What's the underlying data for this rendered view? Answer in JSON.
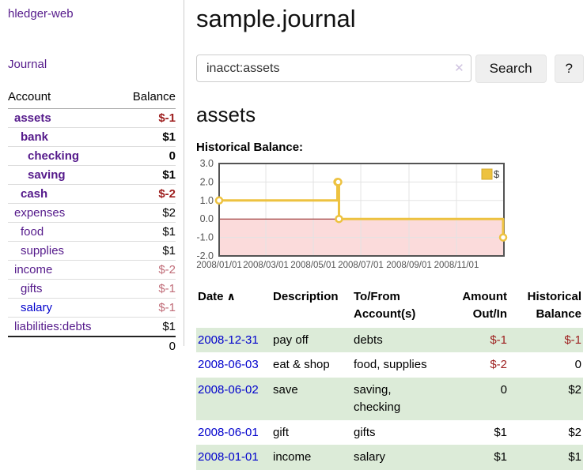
{
  "app": {
    "brand": "hledger-web"
  },
  "sidebar": {
    "journal_label": "Journal",
    "accounts_table": {
      "headers": [
        "Account",
        "Balance"
      ],
      "rows": [
        {
          "account": "assets",
          "balance": "$-1",
          "indent": 0,
          "bold": true,
          "balance_style": "neg-strong"
        },
        {
          "account": "bank",
          "balance": "$1",
          "indent": 1,
          "bold": true,
          "balance_style": "pos"
        },
        {
          "account": "checking",
          "balance": "0",
          "indent": 2,
          "bold": true,
          "balance_style": "pos"
        },
        {
          "account": "saving",
          "balance": "$1",
          "indent": 2,
          "bold": true,
          "balance_style": "pos"
        },
        {
          "account": "cash",
          "balance": "$-2",
          "indent": 1,
          "bold": true,
          "balance_style": "neg-strong"
        },
        {
          "account": "expenses",
          "balance": "$2",
          "indent": 0,
          "bold": false,
          "balance_style": "pos"
        },
        {
          "account": "food",
          "balance": "$1",
          "indent": 1,
          "bold": false,
          "balance_style": "pos"
        },
        {
          "account": "supplies",
          "balance": "$1",
          "indent": 1,
          "bold": false,
          "balance_style": "pos"
        },
        {
          "account": "income",
          "balance": "$-2",
          "indent": 0,
          "bold": false,
          "balance_style": "neg"
        },
        {
          "account": "gifts",
          "balance": "$-1",
          "indent": 1,
          "bold": false,
          "balance_style": "neg"
        },
        {
          "account": "salary",
          "balance": "$-1",
          "indent": 1,
          "bold": false,
          "balance_style": "neg",
          "link_color": "blue"
        },
        {
          "account": "liabilities:debts",
          "balance": "$1",
          "indent": 0,
          "bold": false,
          "balance_style": "pos"
        }
      ],
      "total": "0"
    }
  },
  "header": {
    "title": "sample.journal"
  },
  "search": {
    "value": "inacct:assets",
    "clear_icon": "✕",
    "button": "Search",
    "help_button": "?"
  },
  "account_page": {
    "title": "assets",
    "chart_label": "Historical Balance:"
  },
  "chart_data": {
    "type": "line",
    "title": "Historical Balance:",
    "series": [
      {
        "name": "$",
        "color": "#edc240",
        "interpolation": "step-after",
        "points": [
          {
            "x": "2008-01-01",
            "y": 1
          },
          {
            "x": "2008-06-01",
            "y": 2
          },
          {
            "x": "2008-06-02",
            "y": 2
          },
          {
            "x": "2008-06-03",
            "y": 0
          },
          {
            "x": "2008-12-31",
            "y": -1
          }
        ]
      }
    ],
    "x_range": [
      "2008-01-01",
      "2009-01-01"
    ],
    "ylim": [
      -2,
      3
    ],
    "y_ticks": [
      3.0,
      2.0,
      1.0,
      0.0,
      -1.0,
      -2.0
    ],
    "x_tick_dates": [
      "2008-01-01",
      "2008-03-01",
      "2008-05-01",
      "2008-07-01",
      "2008-09-01",
      "2008-11-01"
    ],
    "x_tick_labels": [
      "2008/01/01",
      "2008/03/01",
      "2008/05/01",
      "2008/07/01",
      "2008/09/01",
      "2008/11/01"
    ],
    "legend": {
      "label": "$",
      "position": "top-right"
    },
    "grid": true,
    "negative_region_color": "#fbdbdb",
    "zero_line_color": "#8b1d1d"
  },
  "register_table": {
    "headers": {
      "date": "Date",
      "sort_icon": "∧",
      "description": "Description",
      "accounts": "To/From Account(s)",
      "amount": "Amount Out/In",
      "balance": "Historical Balance"
    },
    "rows": [
      {
        "date": "2008-12-31",
        "description": "pay off",
        "accounts": "debts",
        "amount": "$-1",
        "amount_negative": true,
        "balance": "$-1",
        "balance_negative": true
      },
      {
        "date": "2008-06-03",
        "description": "eat & shop",
        "accounts": "food, supplies",
        "amount": "$-2",
        "amount_negative": true,
        "balance": "0",
        "balance_negative": false
      },
      {
        "date": "2008-06-02",
        "description": "save",
        "accounts": "saving, checking",
        "amount": "0",
        "amount_negative": false,
        "balance": "$2",
        "balance_negative": false
      },
      {
        "date": "2008-06-01",
        "description": "gift",
        "accounts": "gifts",
        "amount": "$1",
        "amount_negative": false,
        "balance": "$2",
        "balance_negative": false
      },
      {
        "date": "2008-01-01",
        "description": "income",
        "accounts": "salary",
        "amount": "$1",
        "amount_negative": false,
        "balance": "$1",
        "balance_negative": false
      }
    ]
  },
  "colors": {
    "link_purple": "#551a8b",
    "link_blue": "#0000cc",
    "negative_strong": "#9d1d1d",
    "negative_soft": "#c06c78",
    "row_green": "#dcebd8",
    "chart_line": "#edc240",
    "chart_negative_fill": "#fbdbdb",
    "chart_zero_line": "#8b1d1d"
  }
}
